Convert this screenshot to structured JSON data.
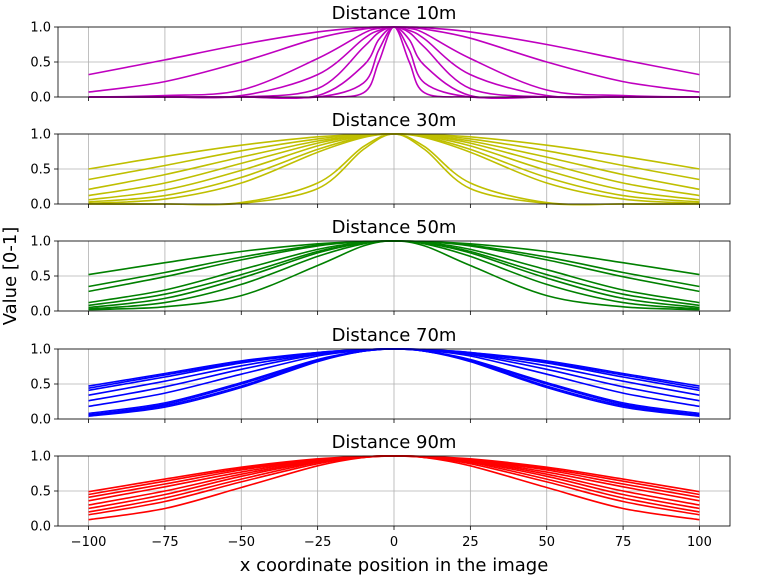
{
  "xlabel": "x coordinate position in the image",
  "ylabel": "Value [0-1]",
  "chart_data": [
    {
      "type": "line",
      "title": "Distance 10m",
      "color": "#bf00bf",
      "xlim": [
        -110,
        110
      ],
      "ylim": [
        0,
        1
      ],
      "yticks": [
        "0.0",
        "0.5",
        "1.0"
      ],
      "x": [
        -100,
        -75,
        -50,
        -25,
        -10,
        -5,
        0,
        5,
        10,
        25,
        50,
        75,
        100
      ],
      "series": [
        {
          "values": [
            0.32,
            0.53,
            0.75,
            0.93,
            0.99,
            1.0,
            1.0,
            1.0,
            0.99,
            0.93,
            0.75,
            0.53,
            0.32
          ]
        },
        {
          "values": [
            0.07,
            0.22,
            0.5,
            0.84,
            0.97,
            0.99,
            1.0,
            0.99,
            0.97,
            0.84,
            0.5,
            0.22,
            0.07
          ]
        },
        {
          "values": [
            0.0,
            0.02,
            0.1,
            0.55,
            0.91,
            0.98,
            1.0,
            0.98,
            0.91,
            0.55,
            0.1,
            0.02,
            0.0
          ]
        },
        {
          "values": [
            0.0,
            0.0,
            0.02,
            0.32,
            0.83,
            0.95,
            1.0,
            0.95,
            0.83,
            0.32,
            0.02,
            0.0,
            0.0
          ]
        },
        {
          "values": [
            0.0,
            0.0,
            0.0,
            0.12,
            0.71,
            0.92,
            1.0,
            0.92,
            0.71,
            0.12,
            0.0,
            0.0,
            0.0
          ]
        },
        {
          "values": [
            0.0,
            0.0,
            0.0,
            0.02,
            0.45,
            0.82,
            1.0,
            0.82,
            0.45,
            0.02,
            0.0,
            0.0,
            0.0
          ]
        },
        {
          "values": [
            0.0,
            0.0,
            0.0,
            0.0,
            0.2,
            0.67,
            1.0,
            0.67,
            0.2,
            0.0,
            0.0,
            0.0,
            0.0
          ]
        },
        {
          "values": [
            0.0,
            0.0,
            0.0,
            0.0,
            0.06,
            0.5,
            1.0,
            0.5,
            0.06,
            0.0,
            0.0,
            0.0,
            0.0
          ]
        }
      ]
    },
    {
      "type": "line",
      "title": "Distance 30m",
      "color": "#bfbf00",
      "xlim": [
        -110,
        110
      ],
      "ylim": [
        0,
        1
      ],
      "yticks": [
        "0.0",
        "0.5",
        "1.0"
      ],
      "x": [
        -100,
        -75,
        -50,
        -25,
        -10,
        0,
        10,
        25,
        50,
        75,
        100
      ],
      "series": [
        {
          "values": [
            0.5,
            0.68,
            0.84,
            0.96,
            0.99,
            1.0,
            0.99,
            0.96,
            0.84,
            0.68,
            0.5
          ]
        },
        {
          "values": [
            0.35,
            0.55,
            0.76,
            0.93,
            0.99,
            1.0,
            0.99,
            0.93,
            0.76,
            0.55,
            0.35
          ]
        },
        {
          "values": [
            0.21,
            0.42,
            0.67,
            0.9,
            0.98,
            1.0,
            0.98,
            0.9,
            0.67,
            0.42,
            0.21
          ]
        },
        {
          "values": [
            0.12,
            0.3,
            0.58,
            0.87,
            0.98,
            1.0,
            0.98,
            0.87,
            0.58,
            0.3,
            0.12
          ]
        },
        {
          "values": [
            0.06,
            0.2,
            0.48,
            0.83,
            0.97,
            1.0,
            0.97,
            0.83,
            0.48,
            0.2,
            0.06
          ]
        },
        {
          "values": [
            0.03,
            0.12,
            0.38,
            0.78,
            0.96,
            1.0,
            0.96,
            0.78,
            0.38,
            0.12,
            0.03
          ]
        },
        {
          "values": [
            0.01,
            0.07,
            0.3,
            0.74,
            0.95,
            1.0,
            0.95,
            0.74,
            0.3,
            0.07,
            0.01
          ]
        },
        {
          "values": [
            0.0,
            0.0,
            0.02,
            0.3,
            0.82,
            1.0,
            0.82,
            0.3,
            0.02,
            0.0,
            0.0
          ]
        },
        {
          "values": [
            0.0,
            0.0,
            0.01,
            0.22,
            0.78,
            1.0,
            0.78,
            0.22,
            0.01,
            0.0,
            0.0
          ]
        }
      ]
    },
    {
      "type": "line",
      "title": "Distance 50m",
      "color": "#008000",
      "xlim": [
        -110,
        110
      ],
      "ylim": [
        0,
        1
      ],
      "yticks": [
        "0.0",
        "0.5",
        "1.0"
      ],
      "x": [
        -100,
        -75,
        -50,
        -25,
        -10,
        0,
        10,
        25,
        50,
        75,
        100
      ],
      "series": [
        {
          "values": [
            0.52,
            0.69,
            0.85,
            0.96,
            0.99,
            1.0,
            0.99,
            0.96,
            0.85,
            0.69,
            0.52
          ]
        },
        {
          "values": [
            0.35,
            0.55,
            0.77,
            0.94,
            0.99,
            1.0,
            0.99,
            0.94,
            0.77,
            0.55,
            0.35
          ]
        },
        {
          "values": [
            0.28,
            0.49,
            0.73,
            0.93,
            0.99,
            1.0,
            0.99,
            0.93,
            0.73,
            0.49,
            0.28
          ]
        },
        {
          "values": [
            0.12,
            0.3,
            0.59,
            0.88,
            0.98,
            1.0,
            0.98,
            0.88,
            0.59,
            0.3,
            0.12
          ]
        },
        {
          "values": [
            0.08,
            0.24,
            0.52,
            0.85,
            0.97,
            1.0,
            0.97,
            0.85,
            0.52,
            0.24,
            0.08
          ]
        },
        {
          "values": [
            0.05,
            0.18,
            0.47,
            0.83,
            0.97,
            1.0,
            0.97,
            0.83,
            0.47,
            0.18,
            0.05
          ]
        },
        {
          "values": [
            0.03,
            0.12,
            0.38,
            0.78,
            0.96,
            1.0,
            0.96,
            0.78,
            0.38,
            0.12,
            0.03
          ]
        },
        {
          "values": [
            0.02,
            0.06,
            0.22,
            0.65,
            0.93,
            1.0,
            0.93,
            0.65,
            0.22,
            0.06,
            0.02
          ]
        }
      ]
    },
    {
      "type": "line",
      "title": "Distance 70m",
      "color": "#0000ff",
      "xlim": [
        -110,
        110
      ],
      "ylim": [
        0,
        1
      ],
      "yticks": [
        "0.0",
        "0.5",
        "1.0"
      ],
      "x": [
        -100,
        -75,
        -50,
        -25,
        -10,
        0,
        10,
        25,
        50,
        75,
        100
      ],
      "series": [
        {
          "values": [
            0.47,
            0.65,
            0.83,
            0.95,
            0.99,
            1.0,
            0.99,
            0.95,
            0.83,
            0.65,
            0.47
          ]
        },
        {
          "values": [
            0.44,
            0.63,
            0.81,
            0.95,
            0.99,
            1.0,
            0.99,
            0.95,
            0.81,
            0.63,
            0.44
          ]
        },
        {
          "values": [
            0.41,
            0.6,
            0.8,
            0.94,
            0.99,
            1.0,
            0.99,
            0.94,
            0.8,
            0.6,
            0.41
          ]
        },
        {
          "values": [
            0.34,
            0.54,
            0.76,
            0.93,
            0.99,
            1.0,
            0.99,
            0.93,
            0.76,
            0.54,
            0.34
          ]
        },
        {
          "values": [
            0.26,
            0.46,
            0.71,
            0.92,
            0.99,
            1.0,
            0.99,
            0.92,
            0.71,
            0.46,
            0.26
          ]
        },
        {
          "values": [
            0.18,
            0.37,
            0.64,
            0.9,
            0.98,
            1.0,
            0.98,
            0.9,
            0.64,
            0.37,
            0.18
          ]
        },
        {
          "values": [
            0.08,
            0.23,
            0.52,
            0.85,
            0.97,
            1.0,
            0.97,
            0.85,
            0.52,
            0.23,
            0.08
          ]
        },
        {
          "values": [
            0.06,
            0.21,
            0.5,
            0.84,
            0.97,
            1.0,
            0.97,
            0.84,
            0.5,
            0.21,
            0.06
          ]
        },
        {
          "values": [
            0.05,
            0.19,
            0.47,
            0.83,
            0.97,
            1.0,
            0.97,
            0.83,
            0.47,
            0.19,
            0.05
          ]
        },
        {
          "values": [
            0.04,
            0.17,
            0.45,
            0.82,
            0.97,
            1.0,
            0.97,
            0.82,
            0.45,
            0.17,
            0.04
          ]
        }
      ]
    },
    {
      "type": "line",
      "title": "Distance 90m",
      "color": "#ff0000",
      "xlim": [
        -110,
        110
      ],
      "ylim": [
        0,
        1
      ],
      "yticks": [
        "0.0",
        "0.5",
        "1.0"
      ],
      "x": [
        -100,
        -75,
        -50,
        -25,
        -10,
        0,
        10,
        25,
        50,
        75,
        100
      ],
      "series": [
        {
          "values": [
            0.49,
            0.67,
            0.84,
            0.96,
            0.99,
            1.0,
            0.99,
            0.96,
            0.84,
            0.67,
            0.49
          ]
        },
        {
          "values": [
            0.45,
            0.64,
            0.82,
            0.95,
            0.99,
            1.0,
            0.99,
            0.95,
            0.82,
            0.64,
            0.45
          ]
        },
        {
          "values": [
            0.41,
            0.6,
            0.8,
            0.94,
            0.99,
            1.0,
            0.99,
            0.94,
            0.8,
            0.6,
            0.41
          ]
        },
        {
          "values": [
            0.36,
            0.56,
            0.77,
            0.94,
            0.99,
            1.0,
            0.99,
            0.94,
            0.77,
            0.56,
            0.36
          ]
        },
        {
          "values": [
            0.3,
            0.5,
            0.74,
            0.93,
            0.99,
            1.0,
            0.99,
            0.93,
            0.74,
            0.5,
            0.3
          ]
        },
        {
          "values": [
            0.25,
            0.45,
            0.71,
            0.92,
            0.99,
            1.0,
            0.99,
            0.92,
            0.71,
            0.45,
            0.25
          ]
        },
        {
          "values": [
            0.2,
            0.4,
            0.67,
            0.91,
            0.98,
            1.0,
            0.98,
            0.91,
            0.67,
            0.4,
            0.2
          ]
        },
        {
          "values": [
            0.16,
            0.35,
            0.63,
            0.89,
            0.98,
            1.0,
            0.98,
            0.89,
            0.63,
            0.35,
            0.16
          ]
        },
        {
          "values": [
            0.09,
            0.25,
            0.55,
            0.86,
            0.98,
            1.0,
            0.98,
            0.86,
            0.55,
            0.25,
            0.09
          ]
        }
      ]
    }
  ],
  "xticks": [
    -100,
    -75,
    -50,
    -25,
    0,
    25,
    50,
    75,
    100
  ],
  "xtick_labels": [
    "−100",
    "−75",
    "−50",
    "−25",
    "0",
    "25",
    "50",
    "75",
    "100"
  ]
}
